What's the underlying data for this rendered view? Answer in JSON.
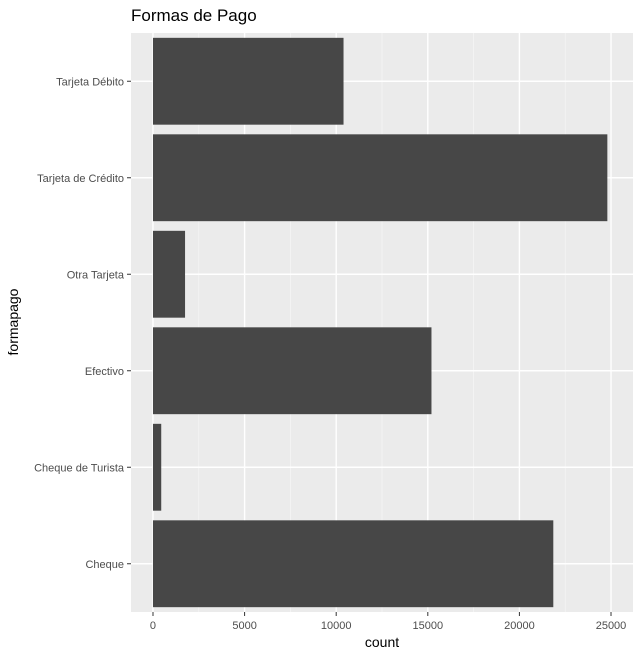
{
  "chart_data": {
    "type": "bar",
    "orientation": "horizontal",
    "title": "Formas de Pago",
    "xlabel": "count",
    "ylabel": "formapago",
    "categories": [
      "Tarjeta Débito",
      "Tarjeta de Crédito",
      "Otra Tarjeta",
      "Efectivo",
      "Cheque de Turista",
      "Cheque"
    ],
    "values": [
      10400,
      24800,
      1750,
      15200,
      450,
      21850
    ],
    "xlim": [
      -1200,
      26200
    ],
    "xticks": [
      0,
      5000,
      10000,
      15000,
      20000,
      25000
    ],
    "xtick_labels": [
      "0",
      "5000",
      "10000",
      "15000",
      "20000",
      "25000"
    ],
    "grid": true,
    "legend": "none",
    "colors": {
      "bar": "#474747",
      "panel": "#ebebeb",
      "grid_major": "#ffffff",
      "grid_minor": "#f5f5f5",
      "tick_text": "#4d4d4d"
    }
  }
}
